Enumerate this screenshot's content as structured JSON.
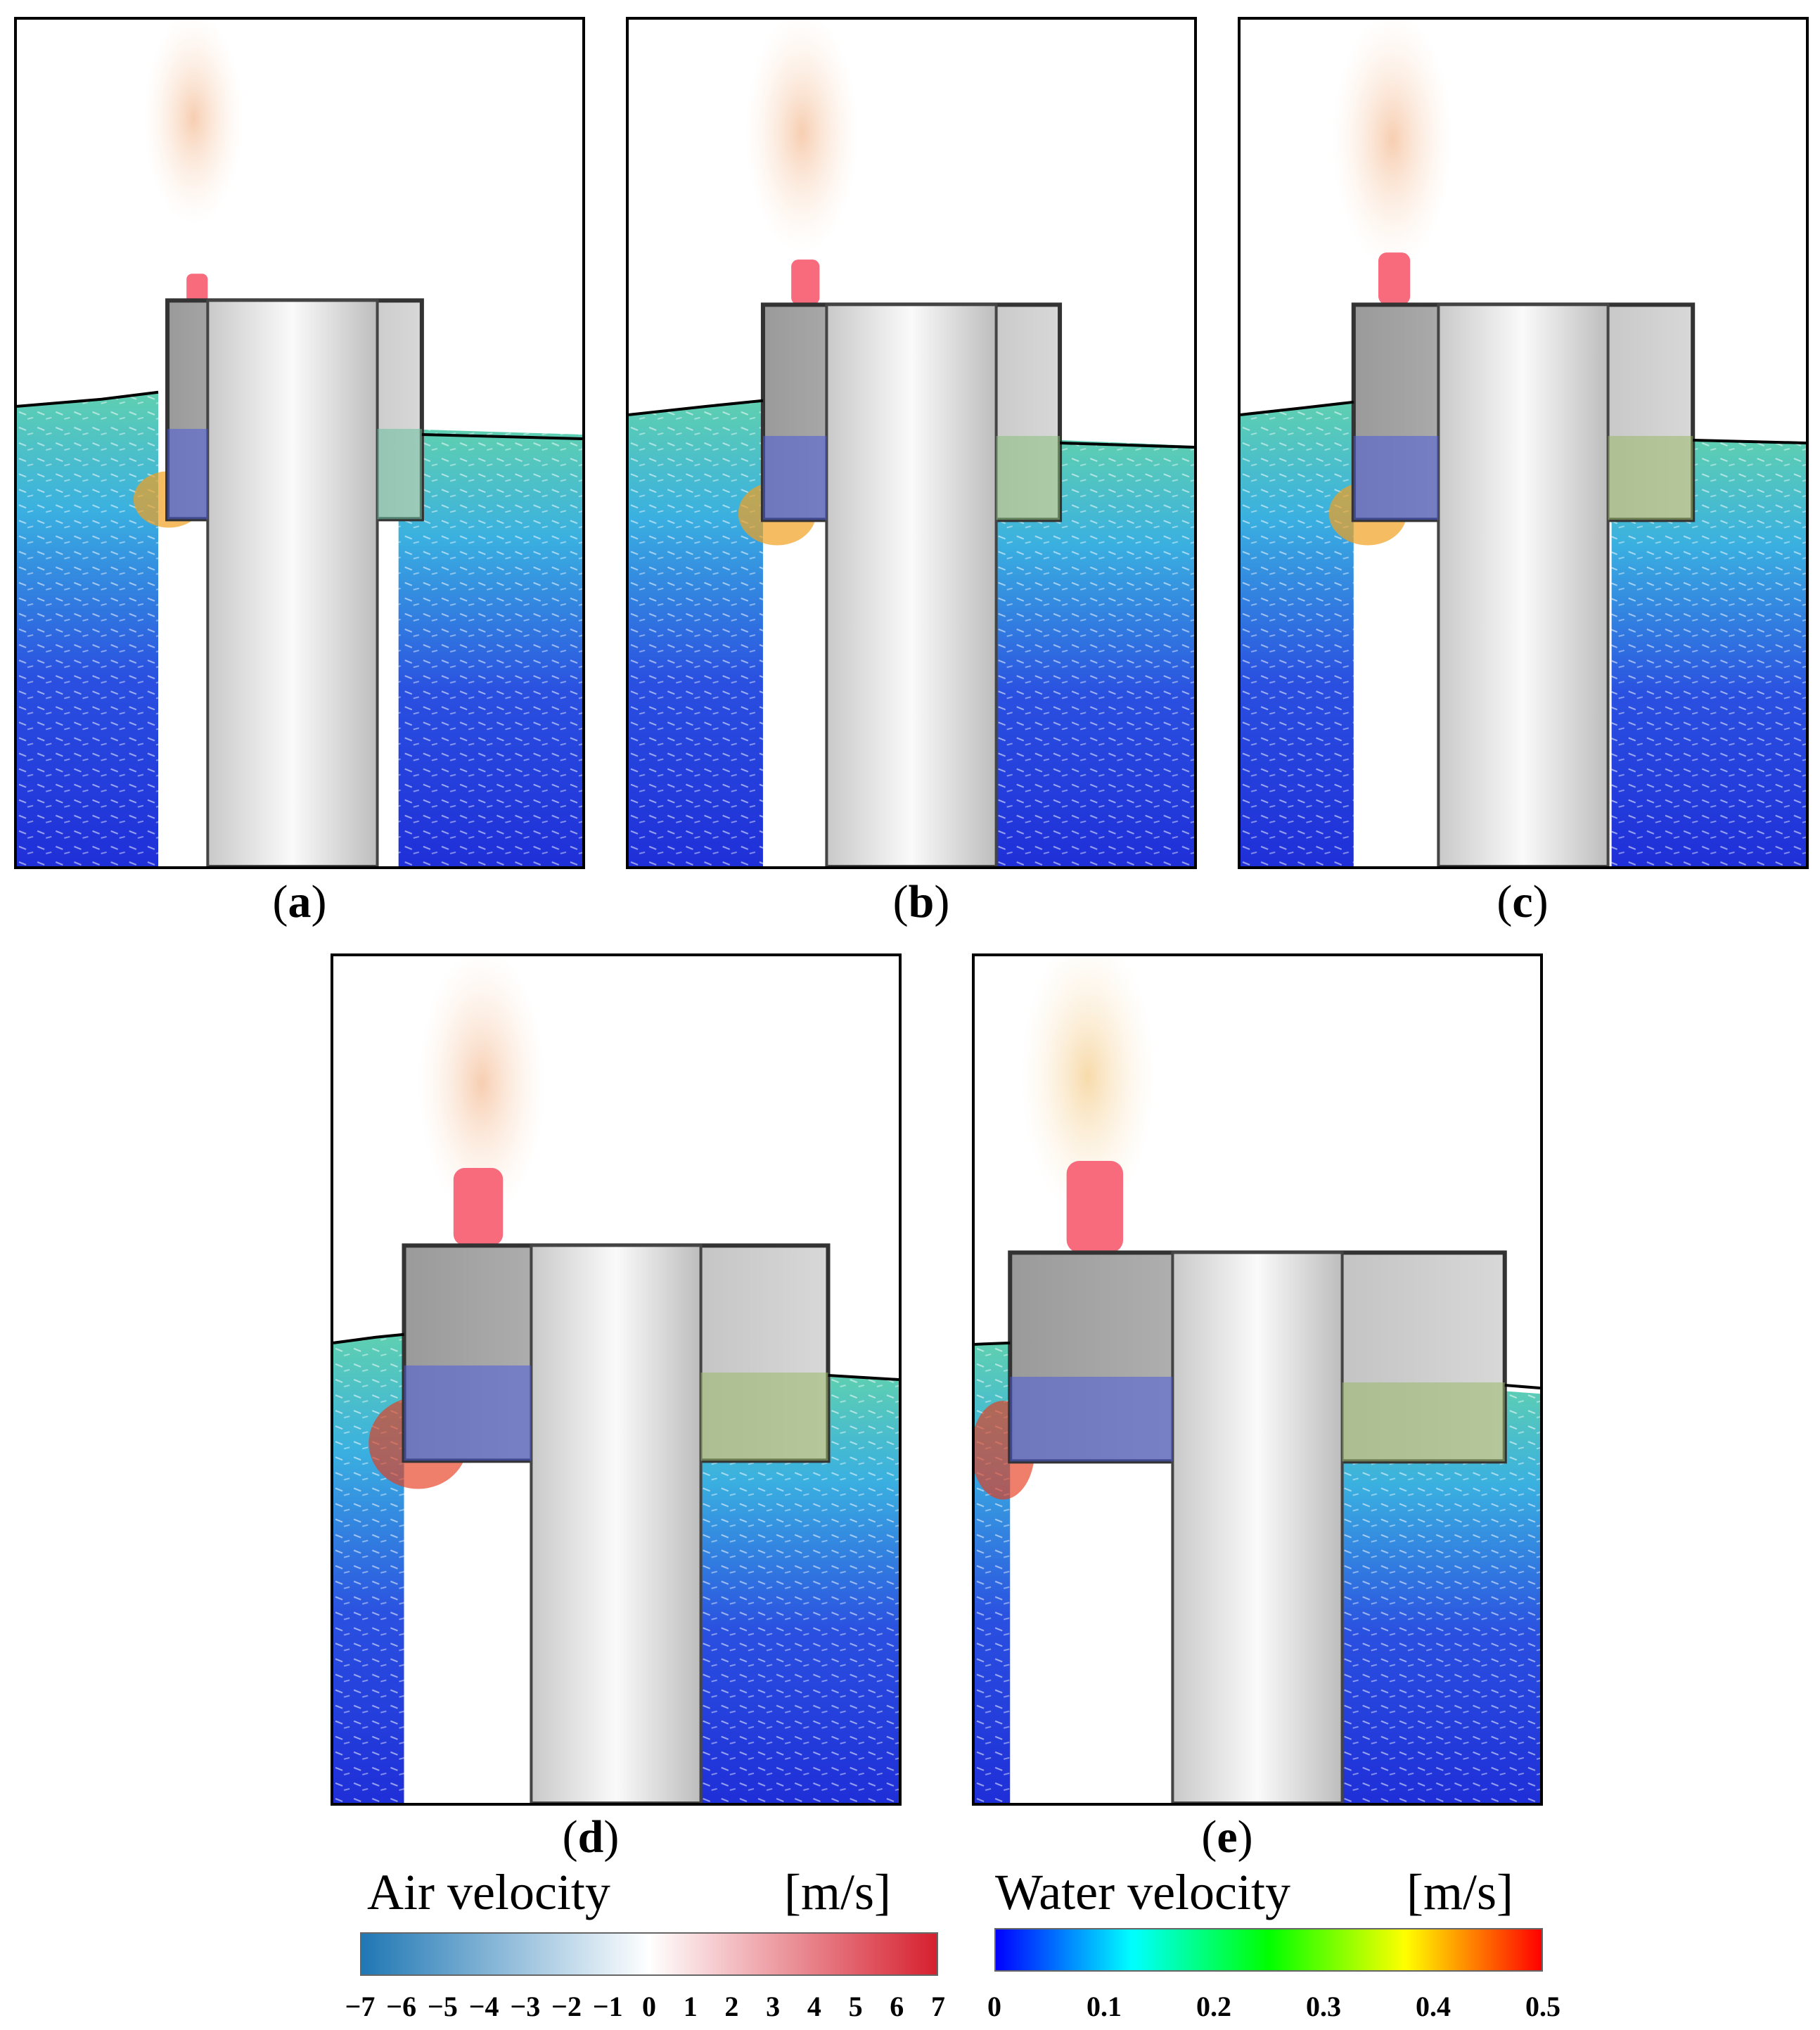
{
  "panels": [
    {
      "id": "a",
      "label": "a"
    },
    {
      "id": "b",
      "label": "b"
    },
    {
      "id": "c",
      "label": "c"
    },
    {
      "id": "d",
      "label": "d"
    },
    {
      "id": "e",
      "label": "e"
    }
  ],
  "legend": {
    "air": {
      "title": "Air velocity",
      "unit": "[m/s]",
      "ticks": [
        "−7",
        "−6",
        "−5",
        "−4",
        "−3",
        "−2",
        "−1",
        "0",
        "1",
        "2",
        "3",
        "4",
        "5",
        "6",
        "7"
      ],
      "colors": [
        "#1f77b4",
        "#ffffff",
        "#d6202f"
      ]
    },
    "water": {
      "title": "Water velocity",
      "unit": "[m/s]",
      "ticks": [
        "0",
        "0.1",
        "0.2",
        "0.3",
        "0.4",
        "0.5"
      ],
      "colors": [
        "#0000ff",
        "#00ffff",
        "#00ff00",
        "#ffff00",
        "#ff0000"
      ]
    }
  }
}
